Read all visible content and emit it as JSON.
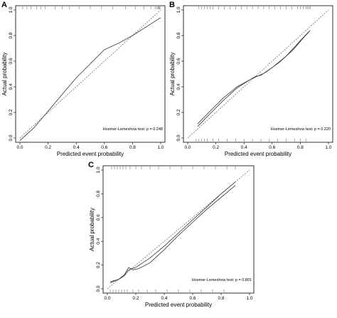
{
  "chart_data": [
    {
      "panel": "A",
      "type": "line",
      "xlabel": "Predicted event probability",
      "ylabel": "Actual probability",
      "xlim": [
        0.0,
        1.0
      ],
      "ylim": [
        0.0,
        1.0
      ],
      "xticks": [
        "0.0",
        "0.2",
        "0.4",
        "0.6",
        "0.8",
        "1.0"
      ],
      "yticks": [
        "0.0",
        "0.2",
        "0.4",
        "0.6",
        "0.8",
        "1.0"
      ],
      "annotation": "Hosmer-Lemeshow test: p = 0.248",
      "grid": false,
      "series": [
        {
          "style": "dashed",
          "points": [
            [
              0.0,
              0.0
            ],
            [
              1.0,
              1.0
            ]
          ]
        },
        {
          "style": "solid",
          "points": [
            [
              0.0,
              -0.02
            ],
            [
              0.1,
              0.08
            ],
            [
              0.2,
              0.21
            ],
            [
              0.3,
              0.34
            ],
            [
              0.4,
              0.47
            ],
            [
              0.5,
              0.58
            ],
            [
              0.6,
              0.69
            ],
            [
              0.7,
              0.74
            ],
            [
              0.8,
              0.8
            ],
            [
              0.9,
              0.87
            ],
            [
              1.0,
              0.94
            ]
          ]
        }
      ],
      "rug_top": [
        0.02,
        0.05,
        0.08,
        0.12,
        0.15,
        0.18,
        0.25,
        0.3,
        0.35,
        0.42,
        0.5,
        0.58,
        0.66,
        0.75,
        0.82,
        0.88,
        0.93,
        0.96,
        0.97,
        0.98,
        0.985,
        0.99,
        0.995
      ]
    },
    {
      "panel": "B",
      "type": "line",
      "xlabel": "Predicted event probability",
      "ylabel": "Actual probability",
      "xlim": [
        0.0,
        1.0
      ],
      "ylim": [
        0.0,
        1.0
      ],
      "xticks": [
        "0.0",
        "0.2",
        "0.4",
        "0.6",
        "0.8",
        "1.0"
      ],
      "yticks": [
        "0.0",
        "0.2",
        "0.4",
        "0.6",
        "0.8",
        "1.0"
      ],
      "annotation": "Hosmer-Lemeshow test: p = 0.220",
      "grid": false,
      "series": [
        {
          "style": "dashed",
          "points": [
            [
              0.0,
              0.0
            ],
            [
              1.0,
              1.0
            ]
          ]
        },
        {
          "style": "solid",
          "points": [
            [
              0.07,
              0.09
            ],
            [
              0.15,
              0.18
            ],
            [
              0.25,
              0.29
            ],
            [
              0.35,
              0.39
            ],
            [
              0.45,
              0.46
            ],
            [
              0.48,
              0.48
            ],
            [
              0.52,
              0.49
            ],
            [
              0.6,
              0.55
            ],
            [
              0.7,
              0.64
            ],
            [
              0.8,
              0.76
            ],
            [
              0.86,
              0.83
            ]
          ]
        },
        {
          "style": "solid",
          "points": [
            [
              0.07,
              0.11
            ],
            [
              0.15,
              0.2
            ],
            [
              0.25,
              0.31
            ],
            [
              0.35,
              0.4
            ],
            [
              0.45,
              0.46
            ],
            [
              0.49,
              0.48
            ],
            [
              0.55,
              0.51
            ],
            [
              0.65,
              0.59
            ],
            [
              0.75,
              0.69
            ],
            [
              0.82,
              0.78
            ],
            [
              0.87,
              0.84
            ]
          ]
        }
      ],
      "rug_top": [
        0.08,
        0.1,
        0.12,
        0.14,
        0.16,
        0.18,
        0.22,
        0.26,
        0.3,
        0.34,
        0.38,
        0.42,
        0.46,
        0.5,
        0.54,
        0.58,
        0.62,
        0.66,
        0.7,
        0.74,
        0.78,
        0.8,
        0.82,
        0.84,
        0.85,
        0.86,
        0.87
      ],
      "rug_bottom": [
        0.06,
        0.08,
        0.1,
        0.12,
        0.14,
        0.18,
        0.22,
        0.28,
        0.34,
        0.4,
        0.46,
        0.52,
        0.58,
        0.64,
        0.7,
        0.76,
        0.8,
        0.84
      ]
    },
    {
      "panel": "C",
      "type": "line",
      "xlabel": "Predicted event probability",
      "ylabel": "Actual probability",
      "xlim": [
        0.0,
        1.0
      ],
      "ylim": [
        0.0,
        1.0
      ],
      "xticks": [
        "0.0",
        "0.2",
        "0.4",
        "0.6",
        "0.8",
        "1.0"
      ],
      "yticks": [
        "0.0",
        "0.2",
        "0.4",
        "0.6",
        "0.8",
        "1.0"
      ],
      "annotation": "Hosmer-Lemeshow test: p = 0.801",
      "grid": false,
      "series": [
        {
          "style": "dashed",
          "points": [
            [
              0.0,
              0.0
            ],
            [
              1.0,
              1.0
            ]
          ]
        },
        {
          "style": "solid",
          "points": [
            [
              0.02,
              0.06
            ],
            [
              0.08,
              0.08
            ],
            [
              0.12,
              0.12
            ],
            [
              0.15,
              0.18
            ],
            [
              0.18,
              0.16
            ],
            [
              0.22,
              0.17
            ],
            [
              0.3,
              0.22
            ],
            [
              0.4,
              0.33
            ],
            [
              0.5,
              0.45
            ],
            [
              0.6,
              0.56
            ],
            [
              0.7,
              0.67
            ],
            [
              0.8,
              0.77
            ],
            [
              0.9,
              0.87
            ]
          ]
        },
        {
          "style": "solid",
          "points": [
            [
              0.02,
              0.05
            ],
            [
              0.08,
              0.08
            ],
            [
              0.12,
              0.11
            ],
            [
              0.15,
              0.16
            ],
            [
              0.2,
              0.18
            ],
            [
              0.3,
              0.26
            ],
            [
              0.4,
              0.36
            ],
            [
              0.5,
              0.47
            ],
            [
              0.6,
              0.58
            ],
            [
              0.7,
              0.69
            ],
            [
              0.8,
              0.8
            ],
            [
              0.9,
              0.9
            ]
          ]
        }
      ],
      "rug_top": [
        0.03,
        0.05,
        0.07,
        0.09,
        0.11,
        0.13,
        0.16,
        0.2,
        0.24,
        0.3,
        0.36,
        0.44,
        0.52,
        0.6,
        0.68,
        0.76,
        0.84,
        0.9
      ],
      "rug_bottom": [
        0.02,
        0.04,
        0.06,
        0.08,
        0.1,
        0.12,
        0.14,
        0.18,
        0.22,
        0.28,
        0.34,
        0.42,
        0.5,
        0.58,
        0.66,
        0.74,
        0.82
      ]
    }
  ]
}
